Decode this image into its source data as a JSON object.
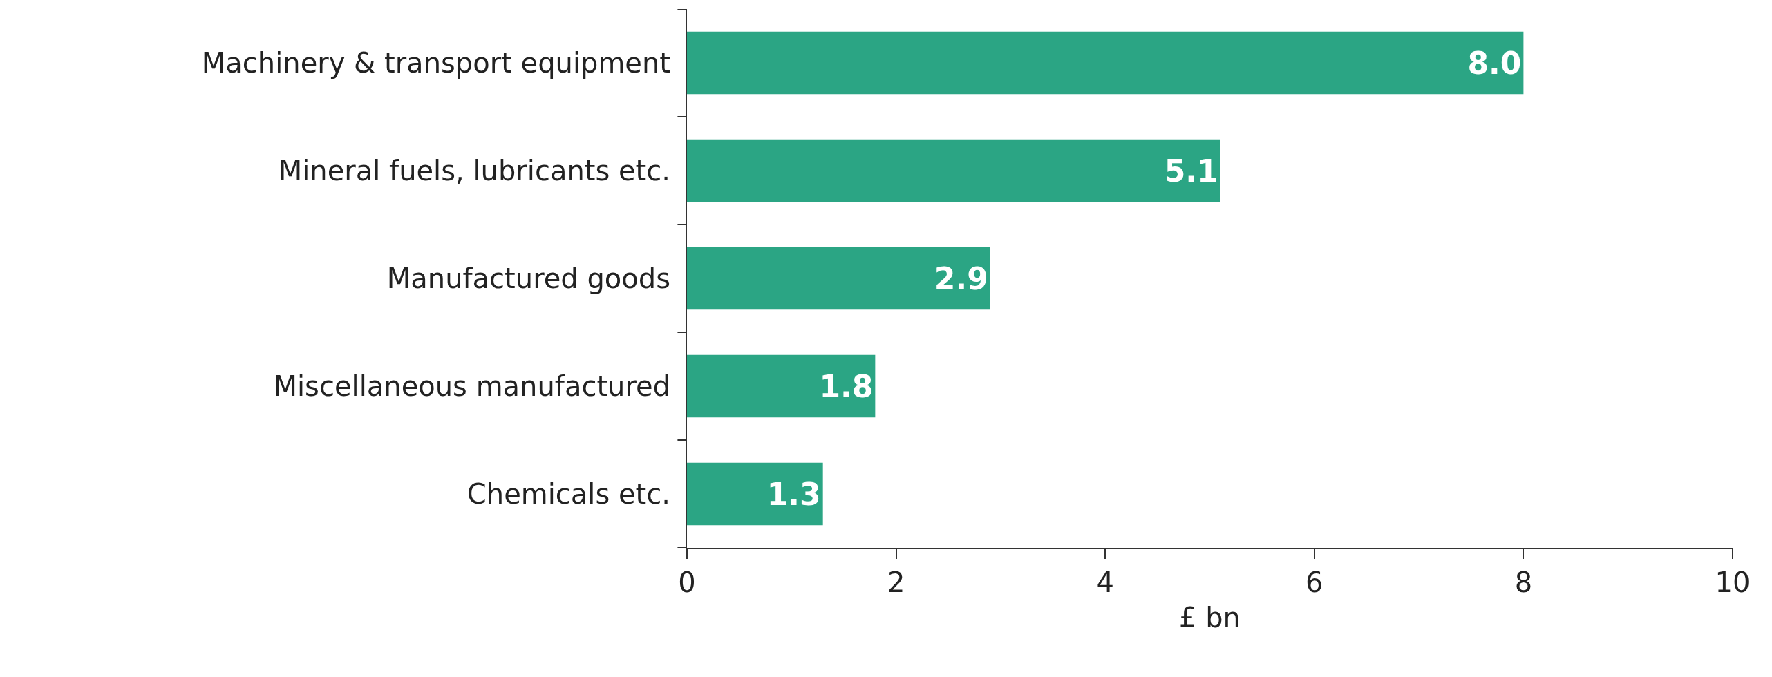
{
  "chart_data": {
    "type": "bar",
    "orientation": "horizontal",
    "xlabel": "£ bn",
    "categories": [
      "Machinery & transport equipment",
      "Mineral fuels, lubricants etc.",
      "Manufactured goods",
      "Miscellaneous manufactured",
      "Chemicals etc."
    ],
    "values": [
      8.0,
      5.1,
      2.9,
      1.8,
      1.3
    ],
    "color": "#2ba584",
    "xlim": [
      0,
      10
    ],
    "xticks": [
      0,
      2,
      4,
      6,
      8,
      10
    ],
    "value_labels": [
      "8.0",
      "5.1",
      "2.9",
      "1.8",
      "1.3"
    ]
  }
}
